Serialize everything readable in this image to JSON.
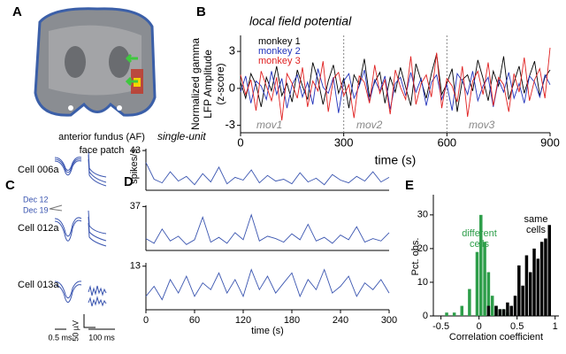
{
  "panel_labels": [
    "A",
    "B",
    "C",
    "D",
    "E"
  ],
  "panel_a": {
    "caption": [
      "anterior fundus (AF)",
      "face patch"
    ]
  },
  "panel_c": {
    "cells": [
      "Cell 006a",
      "Cell 012a",
      "Cell 013a"
    ],
    "dates": [
      "Dec 12",
      "Dec 19"
    ],
    "scale_amp": "50 µV",
    "scale_time_short": "0.5 ms",
    "scale_time_long": "100 ms"
  },
  "chart_data": [
    {
      "type": "line",
      "title": "local field potential",
      "xlabel": "time (s)",
      "ylabel": [
        "Normalized gamma",
        "LFP Amplitude",
        "(z-score)"
      ],
      "xlim": [
        0,
        900
      ],
      "xticks": [
        0,
        300,
        600,
        900
      ],
      "ylim": [
        -3.6,
        4.3
      ],
      "yticks": [
        -3,
        0,
        3
      ],
      "vlines": [
        300,
        600
      ],
      "annotations": [
        "mov1",
        "mov2",
        "mov3"
      ],
      "x": [
        0,
        15,
        30,
        45,
        60,
        75,
        90,
        105,
        120,
        135,
        150,
        165,
        180,
        195,
        210,
        225,
        240,
        255,
        270,
        285,
        300,
        315,
        330,
        345,
        360,
        375,
        390,
        405,
        420,
        435,
        450,
        465,
        480,
        495,
        510,
        525,
        540,
        555,
        570,
        585,
        600,
        615,
        630,
        645,
        660,
        675,
        690,
        705,
        720,
        735,
        750,
        765,
        780,
        795,
        810,
        825,
        840,
        855,
        870,
        885,
        900
      ],
      "series": [
        {
          "name": "monkey 1",
          "color": "#000000",
          "values": [
            0.5,
            -0.8,
            1.2,
            0.3,
            -1.5,
            0.9,
            -0.2,
            1.8,
            -0.6,
            0.4,
            -1.1,
            1.5,
            0.2,
            -0.9,
            2.1,
            0.7,
            -1.3,
            0.6,
            1.9,
            -0.4,
            0.8,
            -1.6,
            1.1,
            0.3,
            2.4,
            -0.7,
            0.5,
            1.3,
            -1.2,
            0.9,
            -0.3,
            1.7,
            0.1,
            -1.4,
            2.0,
            0.6,
            -0.8,
            1.2,
            2.8,
            -0.5,
            0.4,
            1.6,
            -1.9,
            0.7,
            1.1,
            -0.2,
            2.3,
            0.8,
            -1.0,
            1.4,
            0.2,
            2.6,
            -0.9,
            0.5,
            1.8,
            -0.4,
            1.0,
            2.2,
            -0.6,
            0.9,
            1.5
          ]
        },
        {
          "name": "monkey 2",
          "color": "#2233bb",
          "values": [
            -0.3,
            1.0,
            -1.2,
            0.6,
            0.2,
            -0.9,
            1.4,
            -0.5,
            0.8,
            -1.6,
            0.3,
            1.1,
            -0.7,
            0.5,
            -1.3,
            1.6,
            0.1,
            -0.4,
            0.9,
            -2.0,
            0.6,
            1.2,
            -0.8,
            0.2,
            1.5,
            -1.1,
            0.7,
            -0.2,
            1.0,
            -1.7,
            0.4,
            0.9,
            -0.6,
            1.3,
            -0.3,
            0.8,
            -1.4,
            0.5,
            1.1,
            -0.9,
            0.3,
            -1.8,
            1.2,
            0.6,
            -0.5,
            1.4,
            -1.0,
            0.2,
            0.9,
            -1.5,
            0.7,
            -0.3,
            1.3,
            -0.8,
            0.4,
            -1.2,
            1.0,
            0.5,
            -0.7,
            1.1,
            0.3
          ]
        },
        {
          "name": "monkey 3",
          "color": "#e02020",
          "values": [
            1.1,
            -0.5,
            0.7,
            -1.8,
            1.4,
            0.2,
            -1.0,
            0.9,
            -2.6,
            1.2,
            0.4,
            -0.8,
            1.7,
            -1.5,
            0.6,
            -0.2,
            2.2,
            -1.9,
            0.8,
            1.3,
            -0.6,
            0.3,
            -2.4,
            1.0,
            0.5,
            -1.2,
            1.9,
            -0.4,
            0.7,
            -2.1,
            1.5,
            0.1,
            -0.9,
            2.6,
            -1.3,
            0.4,
            1.1,
            -0.7,
            2.9,
            -1.6,
            0.8,
            0.2,
            -1.1,
            1.8,
            -2.3,
            0.6,
            1.4,
            -0.5,
            2.1,
            -1.4,
            0.9,
            0.3,
            -1.9,
            1.2,
            -0.3,
            2.5,
            -1.0,
            0.7,
            1.6,
            -0.8,
            3.3
          ]
        }
      ]
    },
    {
      "type": "line",
      "title": "single-unit",
      "ylabel": "spikes/s",
      "xlim": [
        0,
        300
      ],
      "ylim": [
        0,
        45
      ],
      "yticks": [
        43
      ],
      "x": [
        0,
        10,
        20,
        30,
        40,
        50,
        60,
        70,
        80,
        90,
        100,
        110,
        120,
        130,
        140,
        150,
        160,
        170,
        180,
        190,
        200,
        210,
        220,
        230,
        240,
        250,
        260,
        270,
        280,
        290,
        300
      ],
      "series": [
        {
          "color": "#3a55b0",
          "values": [
            30,
            12,
            8,
            20,
            10,
            15,
            6,
            18,
            9,
            25,
            7,
            14,
            11,
            22,
            8,
            16,
            10,
            12,
            7,
            19,
            9,
            13,
            6,
            17,
            11,
            8,
            15,
            10,
            20,
            9,
            14
          ]
        }
      ]
    },
    {
      "type": "line",
      "xlim": [
        0,
        300
      ],
      "ylim": [
        0,
        38
      ],
      "yticks": [
        37
      ],
      "x": [
        0,
        10,
        20,
        30,
        40,
        50,
        60,
        70,
        80,
        90,
        100,
        110,
        120,
        130,
        140,
        150,
        160,
        170,
        180,
        190,
        200,
        210,
        220,
        230,
        240,
        250,
        260,
        270,
        280,
        290,
        300
      ],
      "series": [
        {
          "color": "#3a55b0",
          "values": [
            10,
            6,
            18,
            8,
            12,
            5,
            9,
            28,
            7,
            11,
            6,
            15,
            9,
            30,
            8,
            12,
            10,
            7,
            14,
            9,
            22,
            8,
            11,
            6,
            13,
            9,
            20,
            7,
            10,
            8,
            15
          ]
        }
      ]
    },
    {
      "type": "line",
      "xlabel": "time (s)",
      "xlim": [
        0,
        300
      ],
      "xticks": [
        0,
        60,
        120,
        180,
        240,
        300
      ],
      "ylim": [
        0,
        14
      ],
      "yticks": [
        13
      ],
      "x": [
        0,
        10,
        20,
        30,
        40,
        50,
        60,
        70,
        80,
        90,
        100,
        110,
        120,
        130,
        140,
        150,
        160,
        170,
        180,
        190,
        200,
        210,
        220,
        230,
        240,
        250,
        260,
        270,
        280,
        290,
        300
      ],
      "series": [
        {
          "color": "#3a55b0",
          "values": [
            4,
            7,
            3,
            9,
            5,
            10,
            4,
            8,
            6,
            11,
            5,
            9,
            4,
            12,
            6,
            10,
            5,
            8,
            11,
            4,
            9,
            6,
            12,
            5,
            7,
            10,
            4,
            8,
            6,
            9,
            5
          ]
        }
      ]
    },
    {
      "type": "histogram",
      "xlabel": "Correlation coefficient",
      "ylabel": "Pct. obs.",
      "xlim": [
        -0.6,
        1.05
      ],
      "xticks": [
        -0.5,
        0,
        0.5,
        1
      ],
      "ylim": [
        0,
        36
      ],
      "yticks": [
        0,
        10,
        20,
        30
      ],
      "bins": [
        -0.55,
        -0.5,
        -0.45,
        -0.4,
        -0.35,
        -0.3,
        -0.25,
        -0.2,
        -0.15,
        -0.1,
        -0.05,
        0,
        0.05,
        0.1,
        0.15,
        0.2,
        0.25,
        0.3,
        0.35,
        0.4,
        0.45,
        0.5,
        0.55,
        0.6,
        0.65,
        0.7,
        0.75,
        0.8,
        0.85,
        0.9,
        0.95,
        1.0
      ],
      "series": [
        {
          "name": "different cells",
          "color": "#2e9e4a",
          "values": [
            0,
            0,
            1,
            0,
            1,
            0,
            3,
            0,
            8,
            0,
            19,
            30,
            22,
            13,
            6,
            3,
            2,
            2,
            1,
            0,
            0,
            0,
            0,
            0,
            0,
            0,
            0,
            0,
            0,
            0,
            0
          ]
        },
        {
          "name": "same cells",
          "color": "#000000",
          "values": [
            0,
            0,
            0,
            0,
            0,
            0,
            0,
            0,
            0,
            0,
            0,
            0,
            0,
            3,
            0,
            3,
            2,
            2,
            4,
            3,
            6,
            15,
            9,
            18,
            13,
            20,
            17,
            22,
            23,
            27,
            0
          ]
        }
      ]
    }
  ]
}
